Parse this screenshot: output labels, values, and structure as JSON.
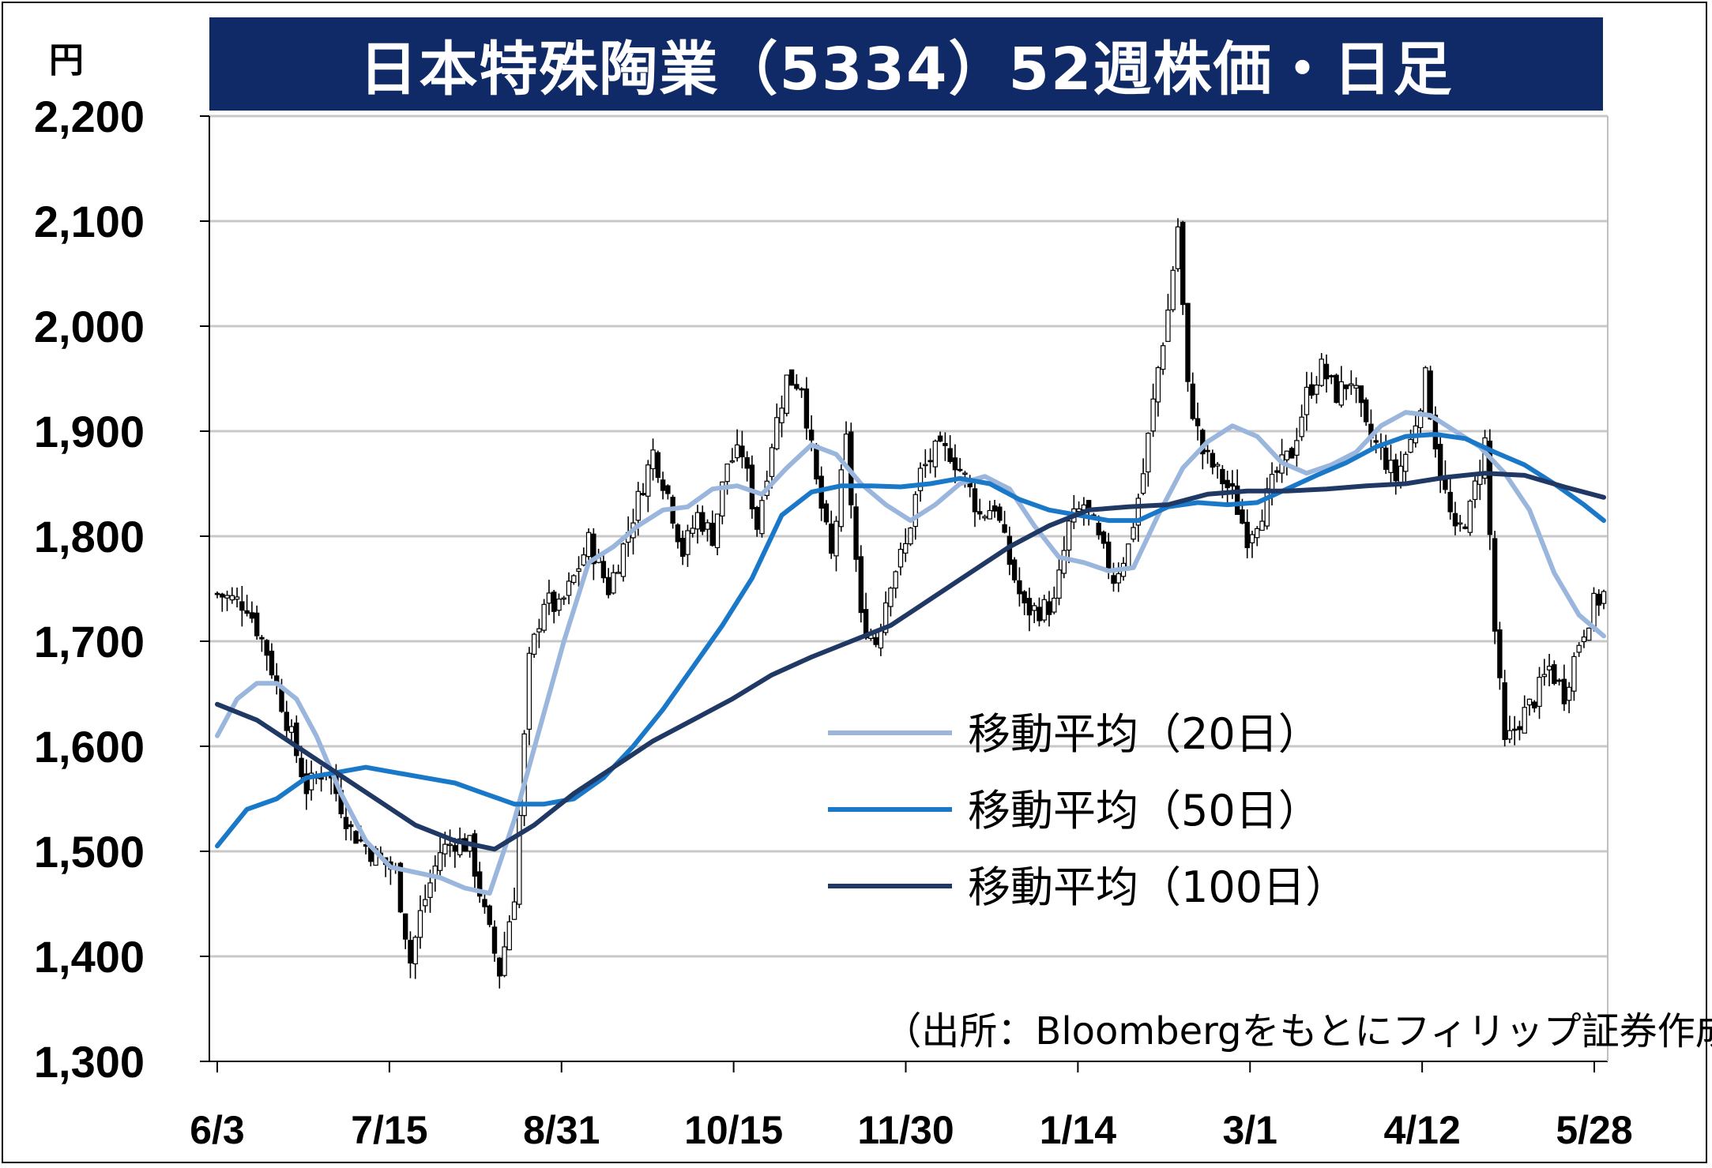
{
  "colors": {
    "title_bg": "#0f2a66",
    "title_text": "#ffffff",
    "ma20": "#9ab6dc",
    "ma50": "#1a78c8",
    "ma100": "#1f3864",
    "grid": "#c8c8c8",
    "candle": "#000000"
  },
  "header": {
    "title": "日本特殊陶業（5334）52週株価・日足",
    "unit": "円"
  },
  "source_note": "（出所：Bloombergをもとにフィリップ証券作成）",
  "chart_data": {
    "type": "candlestick",
    "ylim": [
      1300,
      2200
    ],
    "y_ticks": [
      "1,300",
      "1,400",
      "1,500",
      "1,600",
      "1,700",
      "1,800",
      "1,900",
      "2,000",
      "2,100",
      "2,200"
    ],
    "y_tick_values": [
      1300,
      1400,
      1500,
      1600,
      1700,
      1800,
      1900,
      2000,
      2100,
      2200
    ],
    "x_ticks": [
      "6/3",
      "7/15",
      "8/31",
      "10/15",
      "11/30",
      "1/14",
      "3/1",
      "4/12",
      "5/28"
    ],
    "grid": true,
    "legend_position": "center-right",
    "close_series": [
      {
        "x": 0,
        "y": 1745
      },
      {
        "x": 6,
        "y": 1735
      },
      {
        "x": 10,
        "y": 1690
      },
      {
        "x": 14,
        "y": 1625
      },
      {
        "x": 18,
        "y": 1560
      },
      {
        "x": 22,
        "y": 1580
      },
      {
        "x": 27,
        "y": 1520
      },
      {
        "x": 31,
        "y": 1500
      },
      {
        "x": 36,
        "y": 1480
      },
      {
        "x": 39,
        "y": 1395
      },
      {
        "x": 41,
        "y": 1440
      },
      {
        "x": 45,
        "y": 1500
      },
      {
        "x": 48,
        "y": 1510
      },
      {
        "x": 51,
        "y": 1505
      },
      {
        "x": 54,
        "y": 1440
      },
      {
        "x": 57,
        "y": 1385
      },
      {
        "x": 60,
        "y": 1460
      },
      {
        "x": 63,
        "y": 1680
      },
      {
        "x": 66,
        "y": 1740
      },
      {
        "x": 69,
        "y": 1730
      },
      {
        "x": 72,
        "y": 1760
      },
      {
        "x": 75,
        "y": 1795
      },
      {
        "x": 79,
        "y": 1750
      },
      {
        "x": 82,
        "y": 1790
      },
      {
        "x": 85,
        "y": 1835
      },
      {
        "x": 88,
        "y": 1880
      },
      {
        "x": 91,
        "y": 1840
      },
      {
        "x": 94,
        "y": 1785
      },
      {
        "x": 97,
        "y": 1820
      },
      {
        "x": 100,
        "y": 1800
      },
      {
        "x": 103,
        "y": 1870
      },
      {
        "x": 106,
        "y": 1880
      },
      {
        "x": 109,
        "y": 1810
      },
      {
        "x": 112,
        "y": 1890
      },
      {
        "x": 115,
        "y": 1950
      },
      {
        "x": 118,
        "y": 1945
      },
      {
        "x": 121,
        "y": 1850
      },
      {
        "x": 124,
        "y": 1780
      },
      {
        "x": 127,
        "y": 1890
      },
      {
        "x": 130,
        "y": 1720
      },
      {
        "x": 133,
        "y": 1700
      },
      {
        "x": 136,
        "y": 1760
      },
      {
        "x": 139,
        "y": 1790
      },
      {
        "x": 142,
        "y": 1860
      },
      {
        "x": 145,
        "y": 1880
      },
      {
        "x": 148,
        "y": 1880
      },
      {
        "x": 151,
        "y": 1855
      },
      {
        "x": 154,
        "y": 1820
      },
      {
        "x": 157,
        "y": 1830
      },
      {
        "x": 160,
        "y": 1775
      },
      {
        "x": 163,
        "y": 1730
      },
      {
        "x": 166,
        "y": 1730
      },
      {
        "x": 169,
        "y": 1735
      },
      {
        "x": 172,
        "y": 1810
      },
      {
        "x": 175,
        "y": 1830
      },
      {
        "x": 178,
        "y": 1795
      },
      {
        "x": 181,
        "y": 1760
      },
      {
        "x": 184,
        "y": 1790
      },
      {
        "x": 187,
        "y": 1860
      },
      {
        "x": 190,
        "y": 1960
      },
      {
        "x": 192,
        "y": 2015
      },
      {
        "x": 194,
        "y": 2095
      },
      {
        "x": 196,
        "y": 1940
      },
      {
        "x": 199,
        "y": 1880
      },
      {
        "x": 202,
        "y": 1860
      },
      {
        "x": 205,
        "y": 1840
      },
      {
        "x": 208,
        "y": 1800
      },
      {
        "x": 211,
        "y": 1825
      },
      {
        "x": 214,
        "y": 1860
      },
      {
        "x": 217,
        "y": 1880
      },
      {
        "x": 220,
        "y": 1935
      },
      {
        "x": 223,
        "y": 1960
      },
      {
        "x": 226,
        "y": 1935
      },
      {
        "x": 229,
        "y": 1950
      },
      {
        "x": 232,
        "y": 1900
      },
      {
        "x": 235,
        "y": 1880
      },
      {
        "x": 238,
        "y": 1855
      },
      {
        "x": 241,
        "y": 1890
      },
      {
        "x": 244,
        "y": 1950
      },
      {
        "x": 247,
        "y": 1860
      },
      {
        "x": 250,
        "y": 1800
      },
      {
        "x": 253,
        "y": 1825
      },
      {
        "x": 256,
        "y": 1890
      },
      {
        "x": 258,
        "y": 1710
      },
      {
        "x": 260,
        "y": 1600
      },
      {
        "x": 263,
        "y": 1625
      },
      {
        "x": 266,
        "y": 1645
      },
      {
        "x": 269,
        "y": 1675
      },
      {
        "x": 272,
        "y": 1650
      },
      {
        "x": 275,
        "y": 1700
      },
      {
        "x": 278,
        "y": 1735
      },
      {
        "x": 280,
        "y": 1745
      }
    ],
    "series": [
      {
        "name": "移動平均（20日）",
        "x": [
          0,
          4,
          8,
          12,
          16,
          20,
          25,
          30,
          35,
          40,
          45,
          50,
          55,
          60,
          65,
          70,
          75,
          80,
          85,
          90,
          95,
          100,
          105,
          110,
          115,
          120,
          125,
          130,
          135,
          140,
          145,
          150,
          155,
          160,
          165,
          170,
          175,
          180,
          185,
          190,
          195,
          200,
          205,
          210,
          215,
          220,
          225,
          230,
          235,
          240,
          245,
          250,
          255,
          260,
          265,
          270,
          275,
          280
        ],
        "values": [
          1610,
          1645,
          1660,
          1660,
          1645,
          1610,
          1555,
          1510,
          1485,
          1480,
          1475,
          1465,
          1460,
          1530,
          1615,
          1700,
          1775,
          1790,
          1810,
          1825,
          1828,
          1845,
          1848,
          1840,
          1865,
          1887,
          1878,
          1850,
          1830,
          1815,
          1830,
          1850,
          1857,
          1845,
          1810,
          1780,
          1775,
          1767,
          1770,
          1820,
          1865,
          1890,
          1905,
          1895,
          1870,
          1860,
          1868,
          1880,
          1905,
          1918,
          1915,
          1900,
          1885,
          1860,
          1825,
          1765,
          1725,
          1705
        ]
      },
      {
        "name": "移動平均（50日）",
        "x": [
          0,
          6,
          12,
          18,
          24,
          30,
          36,
          42,
          48,
          54,
          60,
          66,
          72,
          78,
          84,
          90,
          96,
          102,
          108,
          114,
          120,
          126,
          132,
          138,
          144,
          150,
          156,
          162,
          168,
          174,
          180,
          186,
          192,
          198,
          204,
          210,
          216,
          222,
          228,
          234,
          240,
          246,
          252,
          258,
          264,
          270,
          276,
          280
        ],
        "values": [
          1505,
          1540,
          1550,
          1570,
          1575,
          1580,
          1575,
          1570,
          1565,
          1555,
          1545,
          1545,
          1550,
          1570,
          1600,
          1635,
          1675,
          1715,
          1760,
          1820,
          1842,
          1848,
          1848,
          1847,
          1850,
          1855,
          1850,
          1835,
          1825,
          1820,
          1815,
          1815,
          1828,
          1832,
          1830,
          1832,
          1845,
          1858,
          1870,
          1885,
          1895,
          1897,
          1893,
          1880,
          1868,
          1850,
          1830,
          1815
        ]
      },
      {
        "name": "移動平均（100日）",
        "x": [
          0,
          8,
          16,
          24,
          32,
          40,
          48,
          56,
          64,
          72,
          80,
          88,
          96,
          104,
          112,
          120,
          128,
          136,
          144,
          152,
          160,
          168,
          176,
          184,
          192,
          200,
          208,
          216,
          224,
          232,
          240,
          248,
          256,
          264,
          272,
          280
        ],
        "values": [
          1640,
          1625,
          1600,
          1575,
          1550,
          1525,
          1510,
          1502,
          1525,
          1555,
          1580,
          1605,
          1625,
          1645,
          1668,
          1685,
          1700,
          1715,
          1740,
          1765,
          1790,
          1810,
          1825,
          1828,
          1830,
          1840,
          1843,
          1843,
          1845,
          1848,
          1850,
          1856,
          1860,
          1858,
          1847,
          1837
        ]
      }
    ]
  }
}
